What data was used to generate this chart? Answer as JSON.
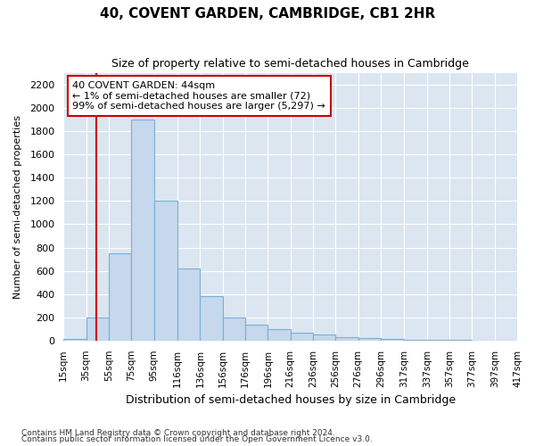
{
  "title": "40, COVENT GARDEN, CAMBRIDGE, CB1 2HR",
  "subtitle": "Size of property relative to semi-detached houses in Cambridge",
  "xlabel": "Distribution of semi-detached houses by size in Cambridge",
  "ylabel": "Number of semi-detached properties",
  "footnote1": "Contains HM Land Registry data © Crown copyright and database right 2024.",
  "footnote2": "Contains public sector information licensed under the Open Government Licence v3.0.",
  "annotation_title": "40 COVENT GARDEN: 44sqm",
  "annotation_line1": "← 1% of semi-detached houses are smaller (72)",
  "annotation_line2": "99% of semi-detached houses are larger (5,297) →",
  "property_sqm": 44,
  "bar_color": "#c5d8ed",
  "bar_edge_color": "#7bafd4",
  "vline_color": "#cc0000",
  "annotation_box_color": "#cc0000",
  "background_color": "#dce6f0",
  "bins": [
    15,
    35,
    55,
    75,
    95,
    116,
    136,
    156,
    176,
    196,
    216,
    236,
    256,
    276,
    296,
    317,
    337,
    357,
    377,
    397,
    417
  ],
  "bin_labels": [
    "15sqm",
    "35sqm",
    "55sqm",
    "75sqm",
    "95sqm",
    "116sqm",
    "136sqm",
    "156sqm",
    "176sqm",
    "196sqm",
    "216sqm",
    "236sqm",
    "256sqm",
    "276sqm",
    "296sqm",
    "317sqm",
    "337sqm",
    "357sqm",
    "377sqm",
    "397sqm",
    "417sqm"
  ],
  "counts": [
    15,
    200,
    750,
    1900,
    1200,
    620,
    380,
    200,
    140,
    100,
    65,
    50,
    30,
    20,
    15,
    10,
    5,
    3,
    2,
    1
  ],
  "ylim": [
    0,
    2300
  ],
  "yticks": [
    0,
    200,
    400,
    600,
    800,
    1000,
    1200,
    1400,
    1600,
    1800,
    2000,
    2200
  ]
}
